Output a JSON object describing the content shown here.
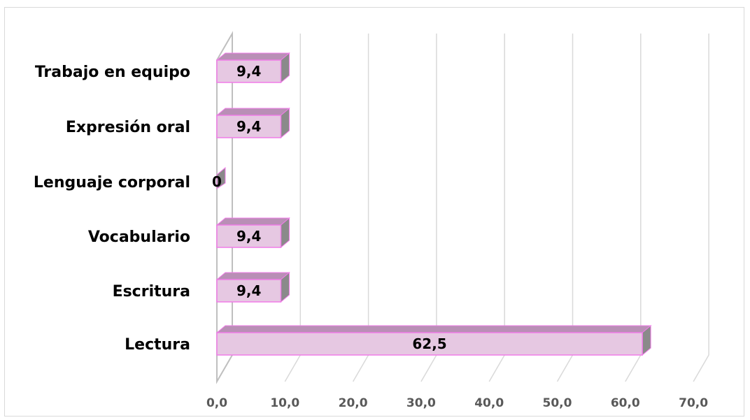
{
  "chart_data": {
    "type": "bar",
    "orientation": "horizontal",
    "style": "3d-clustered-bar",
    "categories": [
      "Trabajo en equipo",
      "Expresión oral",
      "Lenguaje corporal",
      "Vocabulario",
      "Escritura",
      "Lectura"
    ],
    "values": [
      9.4,
      9.4,
      0,
      9.4,
      9.4,
      62.5
    ],
    "data_labels": [
      "9,4",
      "9,4",
      "0",
      "9,4",
      "9,4",
      "62,5"
    ],
    "x_ticks": [
      "0,0",
      "10,0",
      "20,0",
      "30,0",
      "40,0",
      "50,0",
      "60,0",
      "70,0"
    ],
    "xlim": [
      0,
      70
    ],
    "title": "",
    "xlabel": "",
    "ylabel": "",
    "grid": true,
    "legend": "none",
    "colors": {
      "bar_front": "#e6c8e2",
      "bar_top": "#b98fb6",
      "bar_side": "#8a8a8a",
      "bar_border": "#f07ce8",
      "grid": "#d9d9d9",
      "wall": "#bfbfbf"
    }
  }
}
